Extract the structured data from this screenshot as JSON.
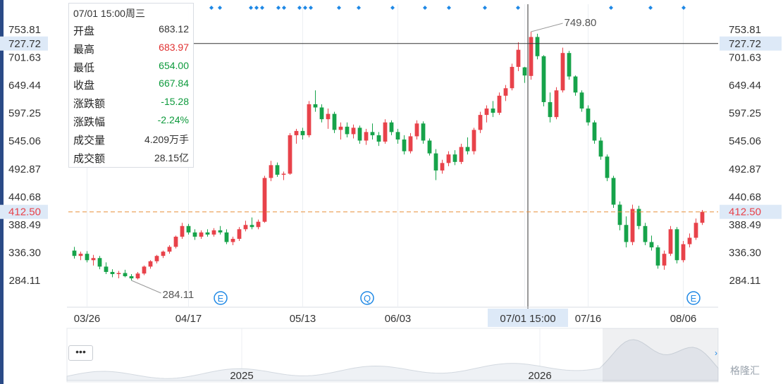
{
  "chart_data": {
    "type": "candlestick",
    "y_ticks": [
      "753.81",
      "727.72",
      "701.63",
      "649.44",
      "597.25",
      "545.06",
      "492.87",
      "440.68",
      "412.50",
      "388.49",
      "336.30",
      "284.11"
    ],
    "x_ticks": [
      "03/26",
      "04/17",
      "05/13",
      "06/03",
      "07/01 15:00",
      "07/16",
      "08/06"
    ],
    "ylim": [
      240,
      775
    ],
    "crosshair": {
      "price": "727.72",
      "time": "07/01 15:00"
    },
    "current_price": "412.50",
    "annotations": {
      "high": "749.80",
      "low": "284.11"
    },
    "event_markers": [
      "E",
      "Q",
      "E"
    ],
    "candles": [
      {
        "d": "03/24",
        "o": 340,
        "h": 347,
        "l": 325,
        "c": 330
      },
      {
        "d": "03/25",
        "o": 330,
        "h": 338,
        "l": 322,
        "c": 334
      },
      {
        "d": "03/26",
        "o": 334,
        "h": 339,
        "l": 318,
        "c": 322
      },
      {
        "d": "03/27",
        "o": 322,
        "h": 332,
        "l": 312,
        "c": 326
      },
      {
        "d": "03/28",
        "o": 326,
        "h": 330,
        "l": 305,
        "c": 310
      },
      {
        "d": "03/31",
        "o": 310,
        "h": 318,
        "l": 296,
        "c": 300
      },
      {
        "d": "04/01",
        "o": 300,
        "h": 305,
        "l": 290,
        "c": 296
      },
      {
        "d": "04/02",
        "o": 296,
        "h": 302,
        "l": 288,
        "c": 298
      },
      {
        "d": "04/03",
        "o": 298,
        "h": 304,
        "l": 290,
        "c": 292
      },
      {
        "d": "04/04",
        "o": 292,
        "h": 296,
        "l": 284.11,
        "c": 288
      },
      {
        "d": "04/07",
        "o": 288,
        "h": 300,
        "l": 286,
        "c": 297
      },
      {
        "d": "04/08",
        "o": 297,
        "h": 312,
        "l": 294,
        "c": 310
      },
      {
        "d": "04/09",
        "o": 310,
        "h": 322,
        "l": 306,
        "c": 320
      },
      {
        "d": "04/10",
        "o": 320,
        "h": 332,
        "l": 316,
        "c": 330
      },
      {
        "d": "04/11",
        "o": 330,
        "h": 340,
        "l": 326,
        "c": 338
      },
      {
        "d": "04/14",
        "o": 338,
        "h": 350,
        "l": 334,
        "c": 347
      },
      {
        "d": "04/15",
        "o": 347,
        "h": 368,
        "l": 344,
        "c": 366
      },
      {
        "d": "04/16",
        "o": 366,
        "h": 392,
        "l": 362,
        "c": 386
      },
      {
        "d": "04/17",
        "o": 386,
        "h": 390,
        "l": 370,
        "c": 374
      },
      {
        "d": "04/18",
        "o": 374,
        "h": 380,
        "l": 360,
        "c": 366
      },
      {
        "d": "04/21",
        "o": 366,
        "h": 378,
        "l": 362,
        "c": 374
      },
      {
        "d": "04/22",
        "o": 374,
        "h": 380,
        "l": 366,
        "c": 370
      },
      {
        "d": "04/23",
        "o": 370,
        "h": 382,
        "l": 366,
        "c": 378
      },
      {
        "d": "04/24",
        "o": 378,
        "h": 386,
        "l": 370,
        "c": 374
      },
      {
        "d": "04/25",
        "o": 374,
        "h": 380,
        "l": 352,
        "c": 356
      },
      {
        "d": "04/28",
        "o": 356,
        "h": 366,
        "l": 350,
        "c": 362
      },
      {
        "d": "04/29",
        "o": 362,
        "h": 384,
        "l": 358,
        "c": 380
      },
      {
        "d": "04/30",
        "o": 380,
        "h": 396,
        "l": 376,
        "c": 388
      },
      {
        "d": "05/01",
        "o": 388,
        "h": 402,
        "l": 380,
        "c": 384
      },
      {
        "d": "05/02",
        "o": 384,
        "h": 398,
        "l": 380,
        "c": 394
      },
      {
        "d": "05/05",
        "o": 394,
        "h": 480,
        "l": 392,
        "c": 476
      },
      {
        "d": "05/06",
        "o": 476,
        "h": 508,
        "l": 470,
        "c": 500
      },
      {
        "d": "05/07",
        "o": 500,
        "h": 505,
        "l": 478,
        "c": 482
      },
      {
        "d": "05/08",
        "o": 482,
        "h": 488,
        "l": 472,
        "c": 484
      },
      {
        "d": "05/09",
        "o": 484,
        "h": 560,
        "l": 482,
        "c": 556
      },
      {
        "d": "05/12",
        "o": 556,
        "h": 568,
        "l": 540,
        "c": 564
      },
      {
        "d": "05/13",
        "o": 564,
        "h": 570,
        "l": 548,
        "c": 556
      },
      {
        "d": "05/14",
        "o": 556,
        "h": 620,
        "l": 552,
        "c": 614
      },
      {
        "d": "05/15",
        "o": 614,
        "h": 640,
        "l": 600,
        "c": 608
      },
      {
        "d": "05/16",
        "o": 608,
        "h": 614,
        "l": 580,
        "c": 586
      },
      {
        "d": "05/19",
        "o": 586,
        "h": 606,
        "l": 568,
        "c": 596
      },
      {
        "d": "05/20",
        "o": 596,
        "h": 600,
        "l": 560,
        "c": 566
      },
      {
        "d": "05/21",
        "o": 566,
        "h": 580,
        "l": 548,
        "c": 572
      },
      {
        "d": "05/22",
        "o": 572,
        "h": 580,
        "l": 552,
        "c": 558
      },
      {
        "d": "05/23",
        "o": 558,
        "h": 576,
        "l": 550,
        "c": 570
      },
      {
        "d": "05/26",
        "o": 570,
        "h": 574,
        "l": 540,
        "c": 546
      },
      {
        "d": "05/27",
        "o": 546,
        "h": 568,
        "l": 538,
        "c": 562
      },
      {
        "d": "05/28",
        "o": 562,
        "h": 578,
        "l": 548,
        "c": 556
      },
      {
        "d": "05/29",
        "o": 556,
        "h": 562,
        "l": 536,
        "c": 544
      },
      {
        "d": "05/30",
        "o": 544,
        "h": 586,
        "l": 540,
        "c": 580
      },
      {
        "d": "06/02",
        "o": 580,
        "h": 584,
        "l": 556,
        "c": 562
      },
      {
        "d": "06/03",
        "o": 562,
        "h": 568,
        "l": 540,
        "c": 548
      },
      {
        "d": "06/04",
        "o": 548,
        "h": 556,
        "l": 520,
        "c": 526
      },
      {
        "d": "06/05",
        "o": 526,
        "h": 560,
        "l": 522,
        "c": 554
      },
      {
        "d": "06/06",
        "o": 554,
        "h": 584,
        "l": 548,
        "c": 578
      },
      {
        "d": "06/09",
        "o": 578,
        "h": 582,
        "l": 540,
        "c": 546
      },
      {
        "d": "06/10",
        "o": 546,
        "h": 550,
        "l": 518,
        "c": 522
      },
      {
        "d": "06/11",
        "o": 522,
        "h": 530,
        "l": 472,
        "c": 490
      },
      {
        "d": "06/12",
        "o": 490,
        "h": 510,
        "l": 484,
        "c": 504
      },
      {
        "d": "06/13",
        "o": 504,
        "h": 526,
        "l": 498,
        "c": 520
      },
      {
        "d": "06/16",
        "o": 520,
        "h": 528,
        "l": 500,
        "c": 506
      },
      {
        "d": "06/17",
        "o": 506,
        "h": 540,
        "l": 502,
        "c": 534
      },
      {
        "d": "06/18",
        "o": 534,
        "h": 552,
        "l": 520,
        "c": 526
      },
      {
        "d": "06/19",
        "o": 526,
        "h": 570,
        "l": 520,
        "c": 566
      },
      {
        "d": "06/20",
        "o": 566,
        "h": 600,
        "l": 560,
        "c": 594
      },
      {
        "d": "06/23",
        "o": 594,
        "h": 612,
        "l": 580,
        "c": 606
      },
      {
        "d": "06/24",
        "o": 606,
        "h": 620,
        "l": 590,
        "c": 598
      },
      {
        "d": "06/25",
        "o": 598,
        "h": 636,
        "l": 594,
        "c": 630
      },
      {
        "d": "06/26",
        "o": 630,
        "h": 650,
        "l": 620,
        "c": 644
      },
      {
        "d": "06/27",
        "o": 644,
        "h": 690,
        "l": 640,
        "c": 684
      },
      {
        "d": "06/30",
        "o": 684,
        "h": 730,
        "l": 676,
        "c": 716
      },
      {
        "d": "07/01",
        "o": 683.12,
        "h": 683.97,
        "l": 654.0,
        "c": 667.84
      },
      {
        "d": "07/02",
        "o": 667,
        "h": 749.8,
        "l": 660,
        "c": 740
      },
      {
        "d": "07/03",
        "o": 740,
        "h": 746,
        "l": 698,
        "c": 704
      },
      {
        "d": "07/07",
        "o": 704,
        "h": 706,
        "l": 610,
        "c": 618
      },
      {
        "d": "07/08",
        "o": 618,
        "h": 636,
        "l": 580,
        "c": 590
      },
      {
        "d": "07/09",
        "o": 590,
        "h": 646,
        "l": 586,
        "c": 640
      },
      {
        "d": "07/10",
        "o": 640,
        "h": 720,
        "l": 636,
        "c": 710
      },
      {
        "d": "07/11",
        "o": 710,
        "h": 714,
        "l": 660,
        "c": 666
      },
      {
        "d": "07/14",
        "o": 666,
        "h": 668,
        "l": 630,
        "c": 636
      },
      {
        "d": "07/15",
        "o": 636,
        "h": 640,
        "l": 600,
        "c": 606
      },
      {
        "d": "07/16",
        "o": 606,
        "h": 612,
        "l": 574,
        "c": 580
      },
      {
        "d": "07/17",
        "o": 580,
        "h": 584,
        "l": 540,
        "c": 546
      },
      {
        "d": "07/18",
        "o": 546,
        "h": 552,
        "l": 510,
        "c": 516
      },
      {
        "d": "07/21",
        "o": 516,
        "h": 520,
        "l": 470,
        "c": 476
      },
      {
        "d": "07/22",
        "o": 476,
        "h": 480,
        "l": 420,
        "c": 426
      },
      {
        "d": "07/23",
        "o": 426,
        "h": 432,
        "l": 378,
        "c": 388
      },
      {
        "d": "07/24",
        "o": 388,
        "h": 404,
        "l": 346,
        "c": 356
      },
      {
        "d": "07/25",
        "o": 356,
        "h": 426,
        "l": 350,
        "c": 418
      },
      {
        "d": "07/28",
        "o": 418,
        "h": 424,
        "l": 380,
        "c": 386
      },
      {
        "d": "07/29",
        "o": 386,
        "h": 392,
        "l": 350,
        "c": 356
      },
      {
        "d": "07/30",
        "o": 356,
        "h": 368,
        "l": 340,
        "c": 346
      },
      {
        "d": "07/31",
        "o": 346,
        "h": 350,
        "l": 306,
        "c": 312
      },
      {
        "d": "08/01",
        "o": 312,
        "h": 340,
        "l": 304,
        "c": 334
      },
      {
        "d": "08/04",
        "o": 334,
        "h": 386,
        "l": 330,
        "c": 380
      },
      {
        "d": "08/05",
        "o": 380,
        "h": 384,
        "l": 316,
        "c": 322
      },
      {
        "d": "08/06",
        "o": 322,
        "h": 358,
        "l": 318,
        "c": 352
      },
      {
        "d": "08/07",
        "o": 352,
        "h": 372,
        "l": 346,
        "c": 364
      },
      {
        "d": "08/08",
        "o": 364,
        "h": 400,
        "l": 360,
        "c": 392
      },
      {
        "d": "08/11",
        "o": 392,
        "h": 416,
        "l": 388,
        "c": 412.5
      }
    ]
  },
  "info_panel": {
    "datetime": "07/01 15:00周三",
    "rows": [
      {
        "label": "开盘",
        "value": "683.12",
        "tone": "dark"
      },
      {
        "label": "最高",
        "value": "683.97",
        "tone": "red"
      },
      {
        "label": "最低",
        "value": "654.00",
        "tone": "green"
      },
      {
        "label": "收盘",
        "value": "667.84",
        "tone": "green"
      },
      {
        "label": "涨跌额",
        "value": "-15.28",
        "tone": "green"
      },
      {
        "label": "涨跌幅",
        "value": "-2.24%",
        "tone": "green"
      },
      {
        "label": "成交量",
        "value": "4.209万手",
        "tone": "dark"
      },
      {
        "label": "成交额",
        "value": "28.15亿",
        "tone": "dark"
      }
    ]
  },
  "navigator": {
    "years": [
      "2025",
      "2026"
    ],
    "menu_label": "•••"
  },
  "logo": "格隆汇",
  "colors": {
    "up": "#e8424a",
    "down": "#16a34a",
    "accent": "#1e88e5",
    "crosshair": "#333333",
    "current_line": "#e8903c"
  }
}
